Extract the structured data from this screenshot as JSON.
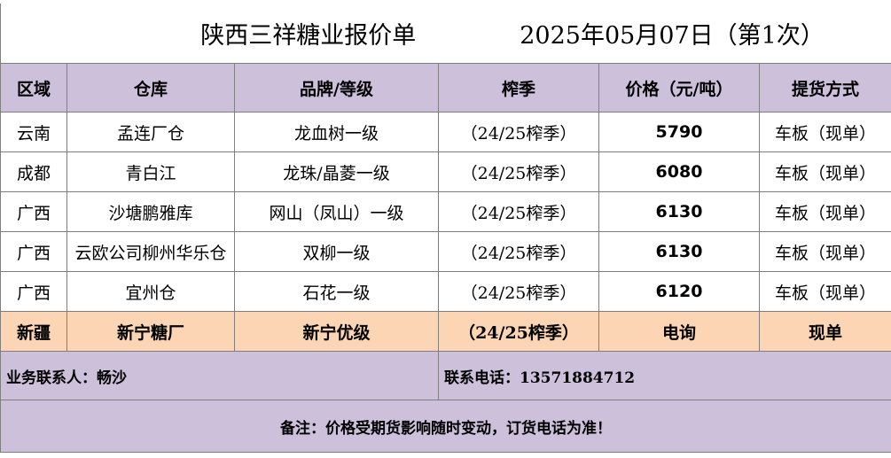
{
  "title": {
    "name": "陕西三祥糖业报价单",
    "date": "2025年05月07日（第1次）"
  },
  "columns": [
    "区域",
    "仓库",
    "品牌/等级",
    "榨季",
    "价格（元/吨）",
    "提货方式"
  ],
  "rows": [
    {
      "region": "云南",
      "warehouse": "孟连厂仓",
      "brand": "龙血树一级",
      "season": "（24/25榨季）",
      "price": "5790",
      "delivery": "车板（现单）"
    },
    {
      "region": "成都",
      "warehouse": "青白江",
      "brand": "龙珠/晶菱一级",
      "season": "（24/25榨季）",
      "price": "6080",
      "delivery": "车板（现单）"
    },
    {
      "region": "广西",
      "warehouse": "沙塘鹏雅库",
      "brand": "网山（凤山）一级",
      "season": "（24/25榨季）",
      "price": "6130",
      "delivery": "车板（现单）"
    },
    {
      "region": "广西",
      "warehouse": "云欧公司柳州华乐仓",
      "brand": "双柳一级",
      "season": "（24/25榨季）",
      "price": "6130",
      "delivery": "车板（现单）"
    },
    {
      "region": "广西",
      "warehouse": "宜州仓",
      "brand": "石花一级",
      "season": "（24/25榨季）",
      "price": "6120",
      "delivery": "车板（现单）"
    },
    {
      "region": "新疆",
      "warehouse": "新宁糖厂",
      "brand": "新宁优级",
      "season": "（24/25榨季）",
      "price": "电询",
      "delivery": "现单"
    }
  ],
  "contact": {
    "person": "业务联系人：畅沙",
    "phone": "联系电话：13571884712"
  },
  "note": "备注：价格受期货影响随时变动，订货电话为准！",
  "colors": {
    "header_bg": "#ccc0da",
    "highlight_bg": "#fcd5b4",
    "border": "#7f7f7f"
  }
}
